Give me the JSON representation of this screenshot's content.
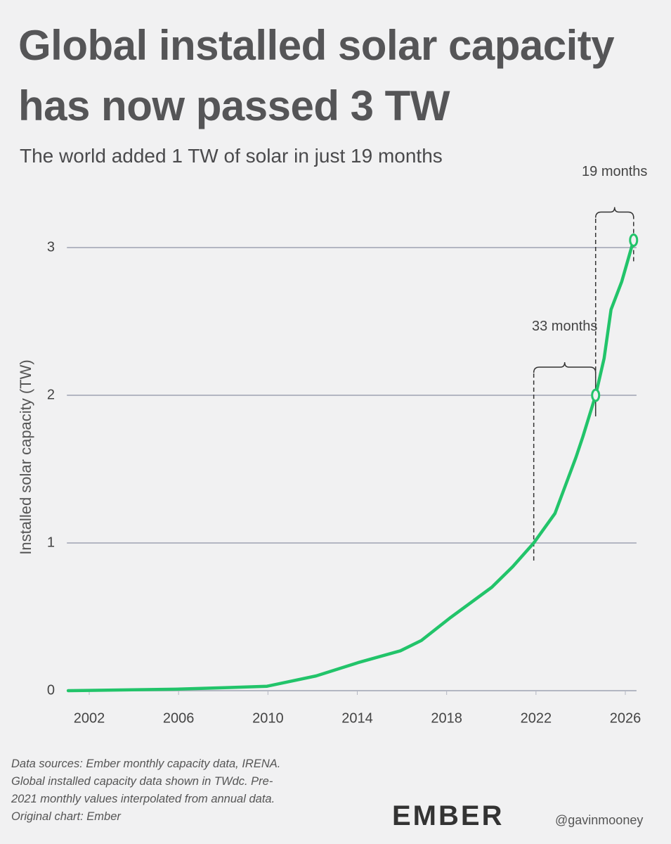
{
  "chart_data": {
    "type": "line",
    "title": "Global installed solar capacity has now passed 3 TW",
    "subtitle": "The world added 1 TW of solar in just 19 months",
    "y_label": "Installed solar capacity (TW)",
    "x": [
      2001.06,
      2005.87,
      2008.07,
      2009.96,
      2010.9,
      2012.16,
      2014.04,
      2015.93,
      2016.87,
      2018.13,
      2020.02,
      2020.96,
      2021.9,
      2022.85,
      2023.79,
      2024.1,
      2024.67,
      2025.05,
      2025.36,
      2025.84,
      2026.37
    ],
    "values": [
      0,
      0.01,
      0.02,
      0.03,
      0.06,
      0.1,
      0.19,
      0.27,
      0.34,
      0.49,
      0.7,
      0.84,
      1.0,
      1.2,
      1.58,
      1.72,
      2.0,
      2.25,
      2.58,
      2.77,
      3.05
    ],
    "color": "#22c46a",
    "xlim": [
      2001,
      2026.5
    ],
    "xticks": [
      2002,
      2006,
      2010,
      2014,
      2018,
      2022,
      2026
    ],
    "ylim": [
      0,
      3.3
    ],
    "yticks": [
      0,
      1,
      2,
      3
    ],
    "grid": true,
    "annotations": [
      {
        "label": "33 months",
        "from": [
          2021.9,
          1.0
        ],
        "to": [
          2024.67,
          2.0
        ]
      },
      {
        "label": "19 months",
        "from": [
          2024.67,
          2.0
        ],
        "to": [
          2026.37,
          3.05
        ]
      }
    ]
  },
  "source": [
    "Data sources: Ember monthly capacity data, IRENA.",
    "Global installed capacity data shown in TWdc. Pre-",
    "2021 monthly values interpolated from annual data.",
    "Original chart: Ember"
  ],
  "logo": "EMBER",
  "author": "@gavinmooney"
}
